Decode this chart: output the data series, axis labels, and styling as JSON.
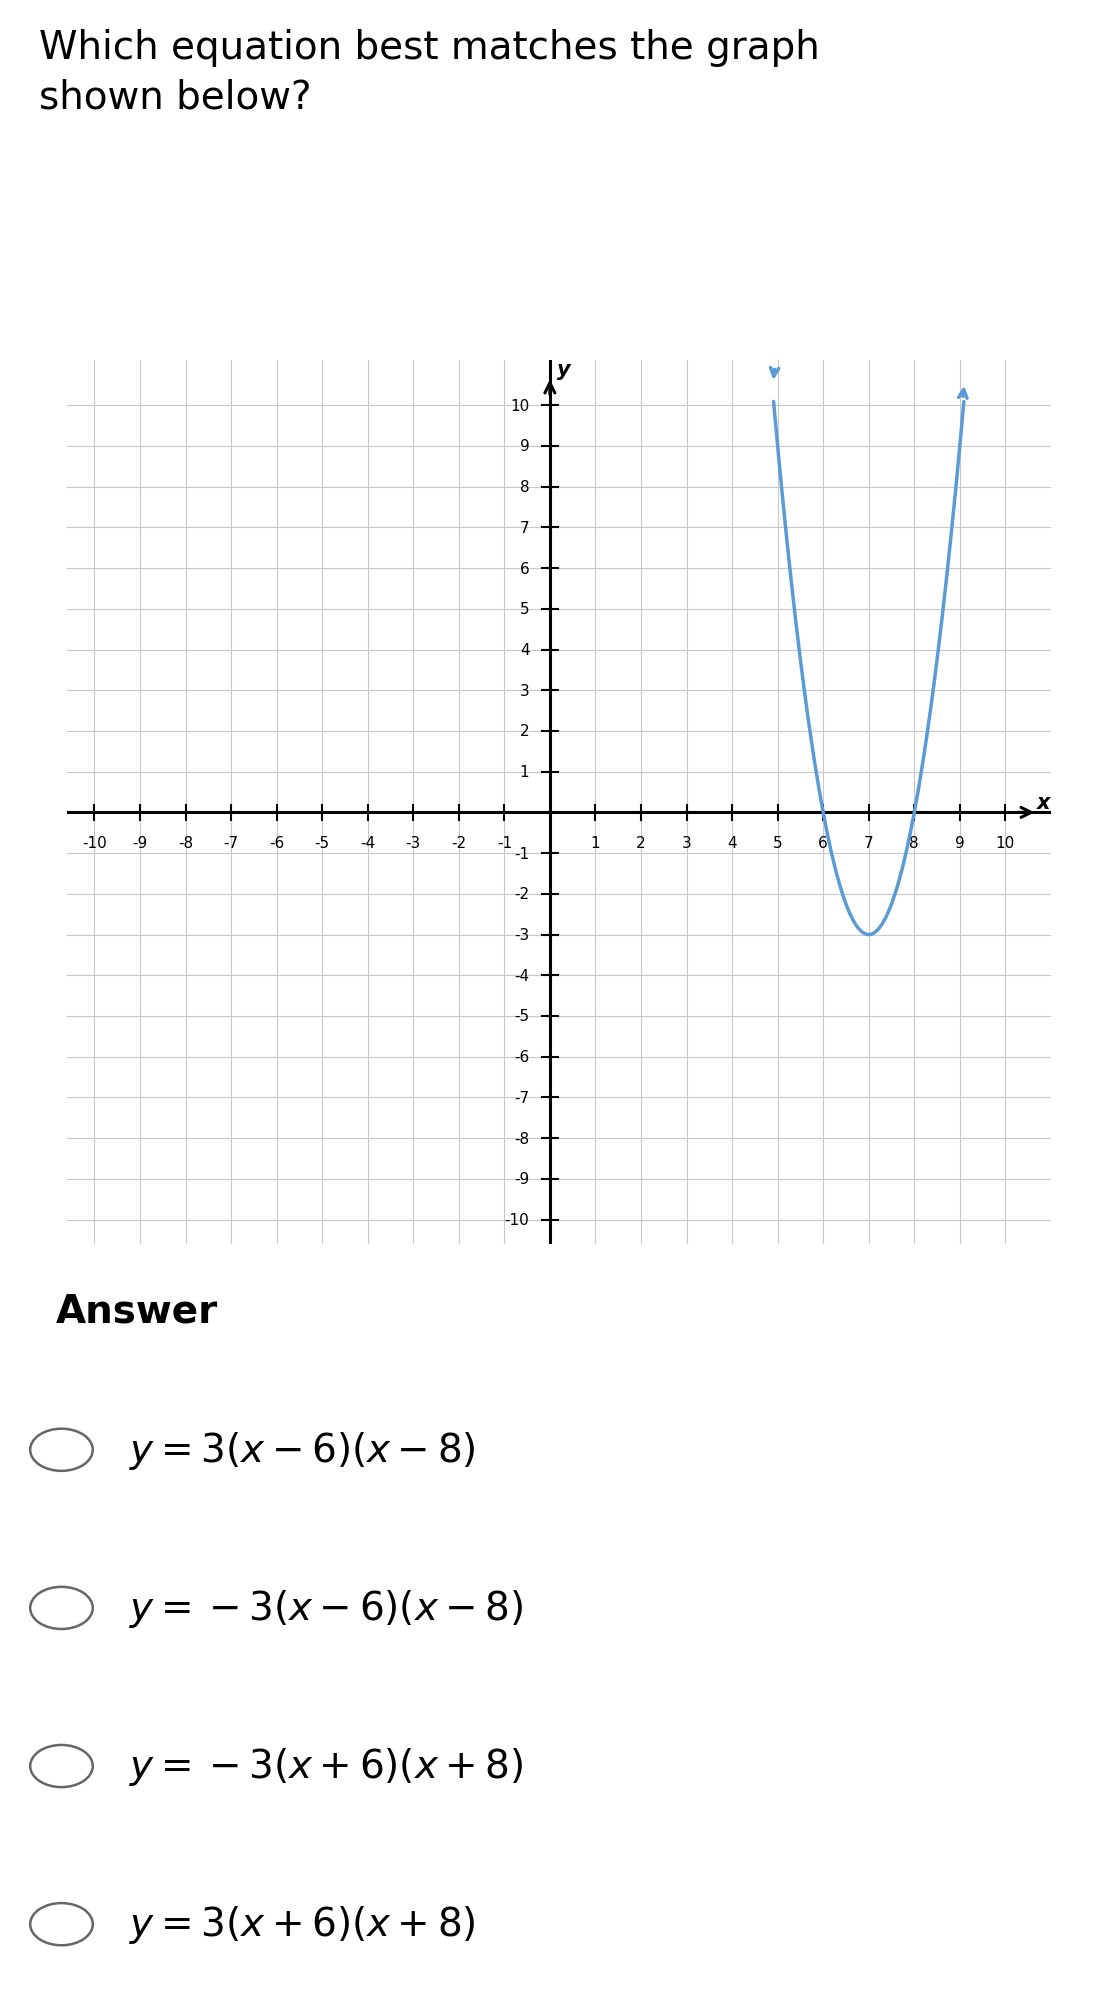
{
  "title": "Which equation best matches the graph\nshown below?",
  "title_fontsize": 28,
  "title_fontweight": "normal",
  "answer_label": "Answer",
  "answer_fontsize": 28,
  "answer_fontweight": "bold",
  "choice_fontsize": 28,
  "xlim": [
    -10,
    10
  ],
  "ylim": [
    -10,
    10
  ],
  "curve_color": "#5b9bd5",
  "curve_linewidth": 2.5,
  "grid_color": "#c8c8c8",
  "grid_linewidth": 0.8,
  "axis_color": "#000000",
  "axis_linewidth": 2.2,
  "background_color": "#ffffff",
  "answer_background": "#eeeeee",
  "graph_background": "#dcdcdc",
  "tick_fontsize": 11,
  "axis_label_fontsize": 15
}
